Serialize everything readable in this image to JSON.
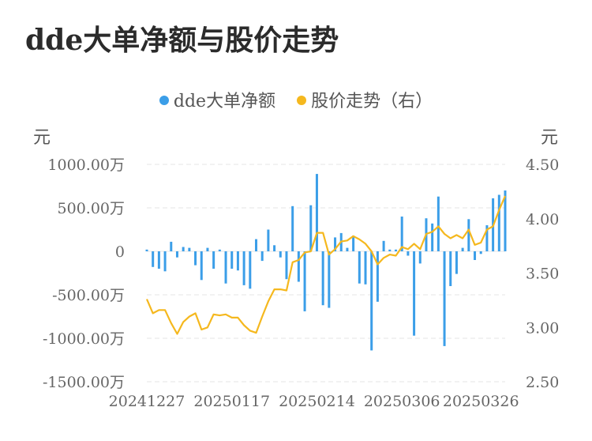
{
  "chart_data": {
    "type": "bar+line",
    "title": "dde大单净额与股价走势",
    "legend": [
      {
        "name": "dde大单净额",
        "color": "#3b9ee8"
      },
      {
        "name": "股价走势（右）",
        "color": "#f5b81e"
      }
    ],
    "left_unit": "元",
    "right_unit": "元",
    "y_left": {
      "min": -1500,
      "max": 1000,
      "ticks": [
        1000,
        500,
        0,
        -500,
        -1000,
        -1500
      ],
      "tick_labels": [
        "1000.00万",
        "500.00万",
        "0",
        "-500.00万",
        "-1000.00万",
        "-1500.00万"
      ]
    },
    "y_right": {
      "min": 2.5,
      "max": 4.5,
      "ticks": [
        4.5,
        4.0,
        3.5,
        3.0,
        2.5
      ],
      "tick_labels": [
        "4.50",
        "4.00",
        "3.50",
        "3.00",
        "2.50"
      ]
    },
    "x_tick_labels": [
      "20241227",
      "20250117",
      "20250214",
      "20250306",
      "20250326"
    ],
    "x_tick_indices": [
      0,
      14,
      28,
      42,
      55
    ],
    "series": [
      {
        "name": "dde大单净额",
        "type": "bar",
        "color": "#3b9ee8",
        "values": [
          20,
          -180,
          -200,
          -230,
          110,
          -70,
          50,
          40,
          -160,
          -330,
          40,
          -200,
          20,
          -370,
          -200,
          -220,
          -390,
          -430,
          140,
          -110,
          250,
          70,
          -70,
          -320,
          520,
          -350,
          -690,
          530,
          890,
          -620,
          -650,
          160,
          210,
          40,
          180,
          -370,
          -380,
          -1140,
          -580,
          120,
          20,
          20,
          400,
          -50,
          -970,
          -140,
          380,
          320,
          630,
          -1090,
          -400,
          -260,
          40,
          370,
          -100,
          -30,
          300,
          610,
          650,
          700
        ]
      },
      {
        "name": "股价走势（右）",
        "type": "line",
        "color": "#f5b81e",
        "values": [
          3.26,
          3.13,
          3.16,
          3.16,
          3.04,
          2.94,
          3.05,
          3.1,
          3.13,
          2.98,
          3.0,
          3.12,
          3.11,
          3.12,
          3.09,
          3.09,
          3.02,
          2.97,
          2.95,
          3.1,
          3.24,
          3.35,
          3.35,
          3.34,
          3.6,
          3.62,
          3.69,
          3.7,
          3.87,
          3.87,
          3.67,
          3.72,
          3.79,
          3.8,
          3.84,
          3.81,
          3.77,
          3.7,
          3.58,
          3.64,
          3.67,
          3.66,
          3.74,
          3.72,
          3.77,
          3.72,
          3.86,
          3.88,
          3.93,
          3.86,
          3.82,
          3.85,
          3.82,
          3.9,
          3.76,
          3.78,
          3.9,
          3.93,
          4.08,
          4.21
        ]
      }
    ]
  }
}
